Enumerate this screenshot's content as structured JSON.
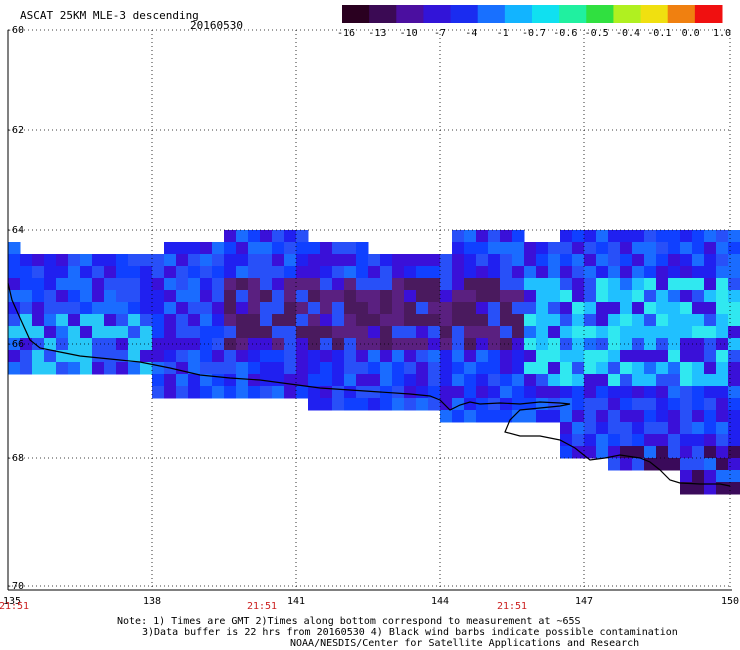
{
  "title": "ASCAT 25KM MLE-3 descending",
  "date": "20160530",
  "colorbar": {
    "labels": [
      "-16",
      "-13",
      "-10",
      "-7",
      "-4",
      "-1",
      "-0.7",
      "-0.6",
      "-0.5",
      "-0.4",
      "-0.1",
      "0.0",
      "1.0"
    ],
    "colors": [
      "#2a0020",
      "#3b0a54",
      "#4b0fa0",
      "#3214d8",
      "#1a2cf0",
      "#1870ff",
      "#12b4ff",
      "#10e0f0",
      "#20f0a0",
      "#30e040",
      "#b0f020",
      "#f0e010",
      "#f08010",
      "#f01010"
    ]
  },
  "lat_labels": [
    "-60",
    "-62",
    "-64",
    "-66",
    "-68",
    "-70"
  ],
  "lon_labels": [
    "135",
    "138",
    "141",
    "144",
    "147",
    "150"
  ],
  "time_labels": [
    "21:51",
    "21:51",
    "21:51",
    "21:51"
  ],
  "notes": [
    "Note: 1) Times are GMT 2)Times along bottom correspond to measurement at ~65S",
    "3)Data buffer is 22 hrs from 20160530 4) Black wind barbs indicate possible contamination",
    "NOAA/NESDIS/Center for Satellite Applications and Research"
  ]
}
